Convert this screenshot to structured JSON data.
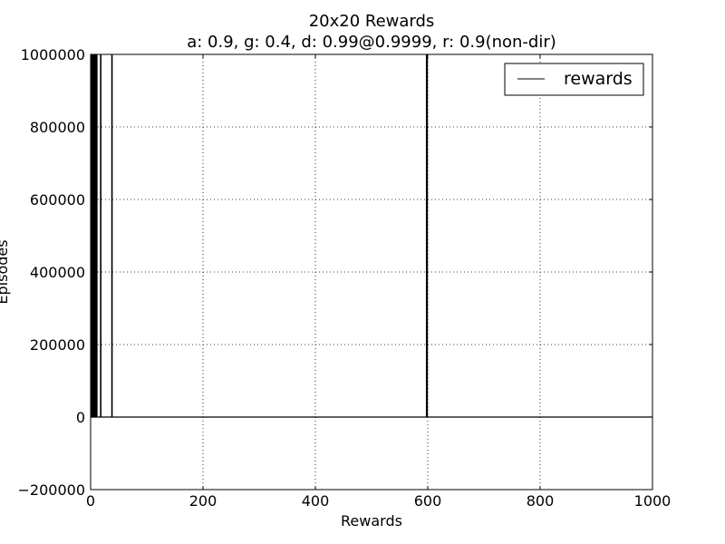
{
  "chart_data": {
    "type": "line",
    "title": "20x20 Rewards",
    "subtitle": "a: 0.9, g: 0.4, d: 0.99@0.9999, r: 0.9(non-dir)",
    "xlabel": "Rewards",
    "ylabel": "Episodes",
    "xlim": [
      0,
      1000
    ],
    "ylim": [
      -200000,
      1000000
    ],
    "x_ticks": [
      0,
      200,
      400,
      600,
      800,
      1000
    ],
    "y_ticks": [
      -200000,
      0,
      200000,
      400000,
      600000,
      800000,
      1000000
    ],
    "x_tick_labels": [
      "0",
      "200",
      "400",
      "600",
      "800",
      "1000"
    ],
    "y_tick_labels": [
      "−200000",
      "0",
      "200000",
      "400000",
      "600000",
      "800000",
      "1000000"
    ],
    "grid": true,
    "legend_position": "top-right",
    "series": [
      {
        "name": "rewards",
        "color": "#000000",
        "spikes_x": [
          1,
          2,
          3,
          4,
          5,
          6,
          7,
          8,
          9,
          10,
          11,
          18,
          38,
          598,
          599
        ],
        "baseline_y": 0,
        "spike_y": 1000000
      }
    ]
  }
}
